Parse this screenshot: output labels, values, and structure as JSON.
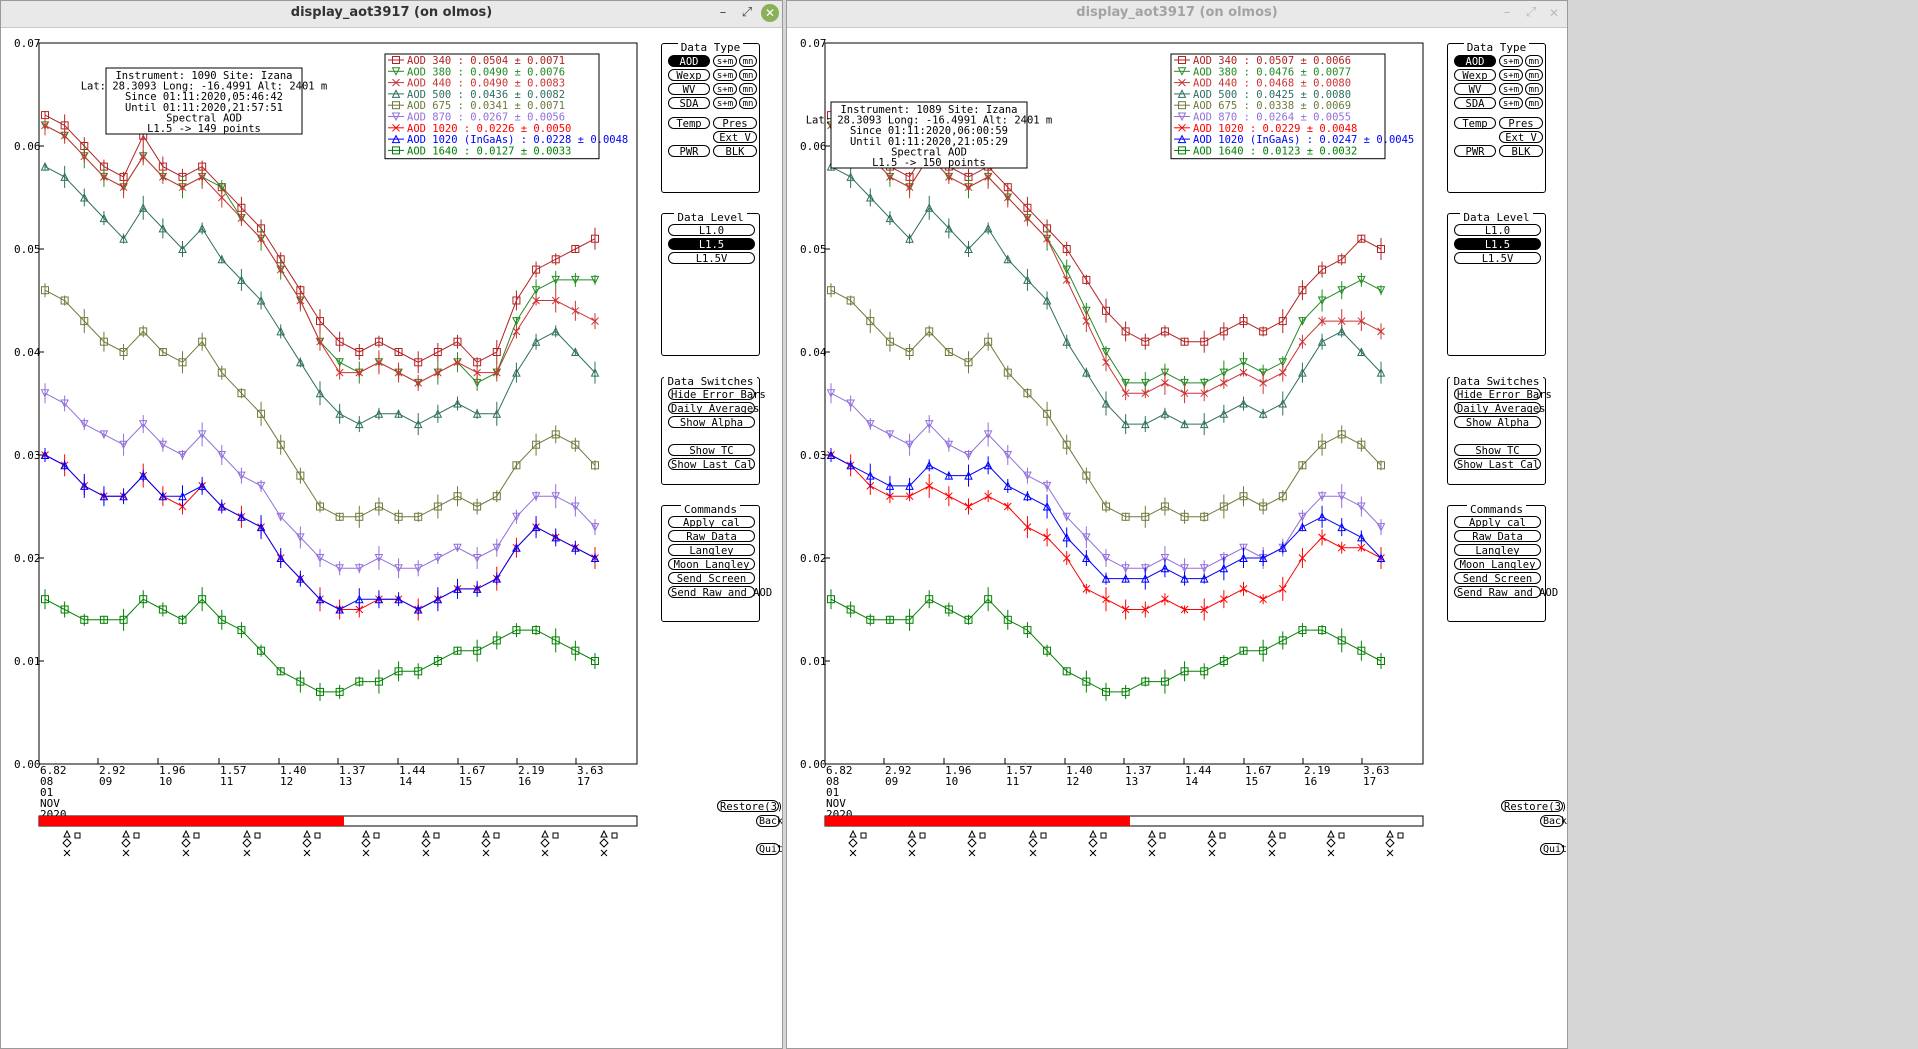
{
  "windows": [
    {
      "title": "display_aot3917 (on olmos)",
      "active": true,
      "info": {
        "line1": "Instrument: 1090 Site: Izana",
        "line2": "Lat: 28.3093 Long: -16.4991 Alt: 2401 m",
        "line3": "Since 01:11:2020,05:46:42",
        "line4": "Until 01:11:2020,21:57:51",
        "line5": "Spectral AOD",
        "line6": "L1.5 -> 149 points"
      },
      "legend": [
        {
          "label": "AOD 340   : 0.0504 ± 0.0071",
          "color": "#b22222",
          "marker": "square"
        },
        {
          "label": "AOD 380   : 0.0490 ± 0.0076",
          "color": "#228b22",
          "marker": "tridown"
        },
        {
          "label": "AOD 440   : 0.0490 ± 0.0083",
          "color": "#cd3333",
          "marker": "x"
        },
        {
          "label": "AOD 500   : 0.0436 ± 0.0082",
          "color": "#2f6f5f",
          "marker": "triup"
        },
        {
          "label": "AOD 675   : 0.0341 ± 0.0071",
          "color": "#6b7b3a",
          "marker": "square"
        },
        {
          "label": "AOD 870   : 0.0267 ± 0.0056",
          "color": "#9370db",
          "marker": "tridown"
        },
        {
          "label": "AOD 1020  : 0.0226 ± 0.0050",
          "color": "#ff0000",
          "marker": "x"
        },
        {
          "label": "AOD 1020 (InGaAs)  : 0.0228 ± 0.0048",
          "color": "#0000ff",
          "marker": "triup"
        },
        {
          "label": "AOD 1640  : 0.0127 ± 0.0033",
          "color": "#008000",
          "marker": "square"
        }
      ],
      "progress_fraction": 0.51,
      "chart_data": {
        "type": "scatter",
        "title": "Spectral AOD",
        "xlabel": "",
        "ylabel": "",
        "ylim": [
          0.0,
          0.07
        ],
        "yticks": [
          "0.07",
          "0.06",
          "0.05",
          "0.04",
          "0.03",
          "0.02",
          "0.01",
          "0.00"
        ],
        "xtick_hours": [
          "08",
          "09",
          "10",
          "11",
          "12",
          "13",
          "14",
          "15",
          "16",
          "17"
        ],
        "xtick_airmass": [
          "6.82",
          "2.92",
          "1.96",
          "1.57",
          "1.40",
          "1.37",
          "1.44",
          "1.67",
          "2.19",
          "3.63"
        ],
        "date_day": "01",
        "date_month": "NOV",
        "date_year": "2020",
        "series": [
          {
            "name": "AOD 340",
            "color": "#b22222",
            "values": [
              0.063,
              0.062,
              0.06,
              0.058,
              0.057,
              0.061,
              0.058,
              0.057,
              0.058,
              0.056,
              0.054,
              0.052,
              0.049,
              0.046,
              0.043,
              0.041,
              0.04,
              0.041,
              0.04,
              0.039,
              0.04,
              0.041,
              0.039,
              0.04,
              0.045,
              0.048,
              0.049,
              0.05,
              0.051
            ]
          },
          {
            "name": "AOD 380",
            "color": "#228b22",
            "values": [
              0.062,
              0.061,
              0.059,
              0.057,
              0.056,
              0.059,
              0.057,
              0.056,
              0.057,
              0.056,
              0.053,
              0.051,
              0.048,
              0.045,
              0.041,
              0.039,
              0.038,
              0.039,
              0.038,
              0.037,
              0.038,
              0.039,
              0.037,
              0.038,
              0.043,
              0.046,
              0.047,
              0.047,
              0.047
            ]
          },
          {
            "name": "AOD 440",
            "color": "#cd3333",
            "values": [
              0.062,
              0.061,
              0.059,
              0.057,
              0.056,
              0.059,
              0.057,
              0.056,
              0.057,
              0.055,
              0.053,
              0.051,
              0.048,
              0.045,
              0.041,
              0.038,
              0.038,
              0.039,
              0.038,
              0.037,
              0.038,
              0.039,
              0.038,
              0.038,
              0.042,
              0.045,
              0.045,
              0.044,
              0.043
            ]
          },
          {
            "name": "AOD 500",
            "color": "#2f6f5f",
            "values": [
              0.058,
              0.057,
              0.055,
              0.053,
              0.051,
              0.054,
              0.052,
              0.05,
              0.052,
              0.049,
              0.047,
              0.045,
              0.042,
              0.039,
              0.036,
              0.034,
              0.033,
              0.034,
              0.034,
              0.033,
              0.034,
              0.035,
              0.034,
              0.034,
              0.038,
              0.041,
              0.042,
              0.04,
              0.038
            ]
          },
          {
            "name": "AOD 675",
            "color": "#6b7b3a",
            "values": [
              0.046,
              0.045,
              0.043,
              0.041,
              0.04,
              0.042,
              0.04,
              0.039,
              0.041,
              0.038,
              0.036,
              0.034,
              0.031,
              0.028,
              0.025,
              0.024,
              0.024,
              0.025,
              0.024,
              0.024,
              0.025,
              0.026,
              0.025,
              0.026,
              0.029,
              0.031,
              0.032,
              0.031,
              0.029
            ]
          },
          {
            "name": "AOD 870",
            "color": "#9370db",
            "values": [
              0.036,
              0.035,
              0.033,
              0.032,
              0.031,
              0.033,
              0.031,
              0.03,
              0.032,
              0.03,
              0.028,
              0.027,
              0.024,
              0.022,
              0.02,
              0.019,
              0.019,
              0.02,
              0.019,
              0.019,
              0.02,
              0.021,
              0.02,
              0.021,
              0.024,
              0.026,
              0.026,
              0.025,
              0.023
            ]
          },
          {
            "name": "AOD 1020",
            "color": "#ff0000",
            "values": [
              0.03,
              0.029,
              0.027,
              0.026,
              0.026,
              0.028,
              0.026,
              0.025,
              0.027,
              0.025,
              0.024,
              0.023,
              0.02,
              0.018,
              0.016,
              0.015,
              0.015,
              0.016,
              0.016,
              0.015,
              0.016,
              0.017,
              0.017,
              0.018,
              0.021,
              0.023,
              0.022,
              0.021,
              0.02
            ]
          },
          {
            "name": "AOD 1020 (InGaAs)",
            "color": "#0000ff",
            "values": [
              0.03,
              0.029,
              0.027,
              0.026,
              0.026,
              0.028,
              0.026,
              0.026,
              0.027,
              0.025,
              0.024,
              0.023,
              0.02,
              0.018,
              0.016,
              0.015,
              0.016,
              0.016,
              0.016,
              0.015,
              0.016,
              0.017,
              0.017,
              0.018,
              0.021,
              0.023,
              0.022,
              0.021,
              0.02
            ]
          },
          {
            "name": "AOD 1640",
            "color": "#008000",
            "values": [
              0.016,
              0.015,
              0.014,
              0.014,
              0.014,
              0.016,
              0.015,
              0.014,
              0.016,
              0.014,
              0.013,
              0.011,
              0.009,
              0.008,
              0.007,
              0.007,
              0.008,
              0.008,
              0.009,
              0.009,
              0.01,
              0.011,
              0.011,
              0.012,
              0.013,
              0.013,
              0.012,
              0.011,
              0.01
            ]
          }
        ]
      }
    },
    {
      "title": "display_aot3917 (on olmos)",
      "active": false,
      "info": {
        "line1": "Instrument: 1089 Site: Izana",
        "line2": "Lat: 28.3093 Long: -16.4991 Alt: 2401 m",
        "line3": "Since 01:11:2020,06:00:59",
        "line4": "Until 01:11:2020,21:05:29",
        "line5": "Spectral AOD",
        "line6": "L1.5 -> 150 points"
      },
      "legend": [
        {
          "label": "AOD 340   : 0.0507 ± 0.0066",
          "color": "#b22222",
          "marker": "square"
        },
        {
          "label": "AOD 380   : 0.0476 ± 0.0077",
          "color": "#228b22",
          "marker": "tridown"
        },
        {
          "label": "AOD 440   : 0.0468 ± 0.0080",
          "color": "#cd3333",
          "marker": "x"
        },
        {
          "label": "AOD 500   : 0.0425 ± 0.0080",
          "color": "#2f6f5f",
          "marker": "triup"
        },
        {
          "label": "AOD 675   : 0.0338 ± 0.0069",
          "color": "#6b7b3a",
          "marker": "square"
        },
        {
          "label": "AOD 870   : 0.0264 ± 0.0055",
          "color": "#9370db",
          "marker": "tridown"
        },
        {
          "label": "AOD 1020  : 0.0229 ± 0.0048",
          "color": "#ff0000",
          "marker": "x"
        },
        {
          "label": "AOD 1020 (InGaAs)  : 0.0247 ± 0.0045",
          "color": "#0000ff",
          "marker": "triup"
        },
        {
          "label": "AOD 1640  : 0.0123 ± 0.0032",
          "color": "#008000",
          "marker": "square"
        }
      ],
      "progress_fraction": 0.51,
      "chart_data": {
        "type": "scatter",
        "title": "Spectral AOD",
        "xlabel": "",
        "ylabel": "",
        "ylim": [
          0.0,
          0.07
        ],
        "yticks": [
          "0.07",
          "0.06",
          "0.05",
          "0.04",
          "0.03",
          "0.02",
          "0.01",
          "0.00"
        ],
        "xtick_hours": [
          "08",
          "09",
          "10",
          "11",
          "12",
          "13",
          "14",
          "15",
          "16",
          "17"
        ],
        "xtick_airmass": [
          "6.82",
          "2.92",
          "1.96",
          "1.57",
          "1.40",
          "1.37",
          "1.44",
          "1.67",
          "2.19",
          "3.63"
        ],
        "date_day": "01",
        "date_month": "NOV",
        "date_year": "2020",
        "series": [
          {
            "name": "AOD 340",
            "color": "#b22222",
            "values": [
              0.063,
              0.062,
              0.06,
              0.058,
              0.057,
              0.06,
              0.058,
              0.057,
              0.058,
              0.056,
              0.054,
              0.052,
              0.05,
              0.047,
              0.044,
              0.042,
              0.041,
              0.042,
              0.041,
              0.041,
              0.042,
              0.043,
              0.042,
              0.043,
              0.046,
              0.048,
              0.049,
              0.051,
              0.05
            ]
          },
          {
            "name": "AOD 380",
            "color": "#228b22",
            "values": [
              0.062,
              0.061,
              0.059,
              0.057,
              0.056,
              0.059,
              0.057,
              0.056,
              0.057,
              0.055,
              0.053,
              0.051,
              0.048,
              0.044,
              0.04,
              0.037,
              0.037,
              0.038,
              0.037,
              0.037,
              0.038,
              0.039,
              0.038,
              0.039,
              0.043,
              0.045,
              0.046,
              0.047,
              0.046
            ]
          },
          {
            "name": "AOD 440",
            "color": "#cd3333",
            "values": [
              0.062,
              0.061,
              0.059,
              0.057,
              0.056,
              0.059,
              0.057,
              0.056,
              0.057,
              0.055,
              0.053,
              0.051,
              0.047,
              0.043,
              0.039,
              0.036,
              0.036,
              0.037,
              0.036,
              0.036,
              0.037,
              0.038,
              0.037,
              0.038,
              0.041,
              0.043,
              0.043,
              0.043,
              0.042
            ]
          },
          {
            "name": "AOD 500",
            "color": "#2f6f5f",
            "values": [
              0.058,
              0.057,
              0.055,
              0.053,
              0.051,
              0.054,
              0.052,
              0.05,
              0.052,
              0.049,
              0.047,
              0.045,
              0.041,
              0.038,
              0.035,
              0.033,
              0.033,
              0.034,
              0.033,
              0.033,
              0.034,
              0.035,
              0.034,
              0.035,
              0.038,
              0.041,
              0.042,
              0.04,
              0.038
            ]
          },
          {
            "name": "AOD 675",
            "color": "#6b7b3a",
            "values": [
              0.046,
              0.045,
              0.043,
              0.041,
              0.04,
              0.042,
              0.04,
              0.039,
              0.041,
              0.038,
              0.036,
              0.034,
              0.031,
              0.028,
              0.025,
              0.024,
              0.024,
              0.025,
              0.024,
              0.024,
              0.025,
              0.026,
              0.025,
              0.026,
              0.029,
              0.031,
              0.032,
              0.031,
              0.029
            ]
          },
          {
            "name": "AOD 870",
            "color": "#9370db",
            "values": [
              0.036,
              0.035,
              0.033,
              0.032,
              0.031,
              0.033,
              0.031,
              0.03,
              0.032,
              0.03,
              0.028,
              0.027,
              0.024,
              0.022,
              0.02,
              0.019,
              0.019,
              0.02,
              0.019,
              0.019,
              0.02,
              0.021,
              0.02,
              0.021,
              0.024,
              0.026,
              0.026,
              0.025,
              0.023
            ]
          },
          {
            "name": "AOD 1020",
            "color": "#ff0000",
            "values": [
              0.03,
              0.029,
              0.027,
              0.026,
              0.026,
              0.027,
              0.026,
              0.025,
              0.026,
              0.025,
              0.023,
              0.022,
              0.02,
              0.017,
              0.016,
              0.015,
              0.015,
              0.016,
              0.015,
              0.015,
              0.016,
              0.017,
              0.016,
              0.017,
              0.02,
              0.022,
              0.021,
              0.021,
              0.02
            ]
          },
          {
            "name": "AOD 1020 (InGaAs)",
            "color": "#0000ff",
            "values": [
              0.03,
              0.029,
              0.028,
              0.027,
              0.027,
              0.029,
              0.028,
              0.028,
              0.029,
              0.027,
              0.026,
              0.025,
              0.022,
              0.02,
              0.018,
              0.018,
              0.018,
              0.019,
              0.018,
              0.018,
              0.019,
              0.02,
              0.02,
              0.021,
              0.023,
              0.024,
              0.023,
              0.022,
              0.02
            ]
          },
          {
            "name": "AOD 1640",
            "color": "#008000",
            "values": [
              0.016,
              0.015,
              0.014,
              0.014,
              0.014,
              0.016,
              0.015,
              0.014,
              0.016,
              0.014,
              0.013,
              0.011,
              0.009,
              0.008,
              0.007,
              0.007,
              0.008,
              0.008,
              0.009,
              0.009,
              0.01,
              0.011,
              0.011,
              0.012,
              0.013,
              0.013,
              0.012,
              0.011,
              0.01
            ]
          }
        ]
      }
    }
  ],
  "panels": {
    "data_type": {
      "title": "Data Type",
      "aod": "AOD",
      "wexp": "Wexp",
      "wv": "WV",
      "sda": "SDA",
      "sm": "s+m",
      "mn": "mn",
      "temp": "Temp",
      "pres": "Pres",
      "extv": "Ext V",
      "pwr": "PWR",
      "blk": "BLK"
    },
    "data_level": {
      "title": "Data Level",
      "l10": "L1.0",
      "l15": "L1.5",
      "l15v": "L1.5V"
    },
    "data_switches": {
      "title": "Data Switches",
      "hide_error": "Hide Error Bars",
      "daily_avg": "Daily Averages",
      "show_alpha": "Show Alpha",
      "show_tc": "Show TC",
      "show_last_cal": "Show Last Cal"
    },
    "commands": {
      "title": "Commands",
      "apply_cal": "Apply cal",
      "raw_data": "Raw Data",
      "langley": "Langley",
      "moon_langley": "Moon Langley",
      "send_screen": "Send Screen",
      "send_raw_aod": "Send Raw and AOD"
    },
    "restore": "Restore(3)",
    "back": "Back",
    "quit": "Quit"
  }
}
